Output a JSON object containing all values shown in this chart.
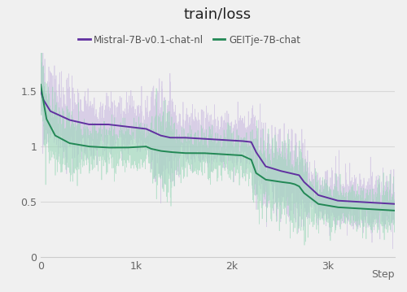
{
  "title": "train/loss",
  "xlabel": "Step",
  "xlim": [
    0,
    3700
  ],
  "ylim": [
    0,
    1.85
  ],
  "yticks": [
    0,
    0.5,
    1.0,
    1.5
  ],
  "xtick_labels": [
    "0",
    "1k",
    "2k",
    "3k"
  ],
  "xtick_positions": [
    0,
    1000,
    2000,
    3000
  ],
  "bg_color": "#f0f0f0",
  "mistral_color": "#6030a0",
  "geitje_color": "#228855",
  "mistral_shadow_color": "#c8b8e0",
  "geitje_shadow_color": "#99d8b8",
  "legend_label_mistral": "Mistral-7B-v0.1-chat-nl",
  "legend_label_geitje": "GEITje-7B-chat",
  "title_fontsize": 13,
  "legend_fontsize": 8.5,
  "tick_fontsize": 9,
  "grid_color": "#d8d8d8"
}
